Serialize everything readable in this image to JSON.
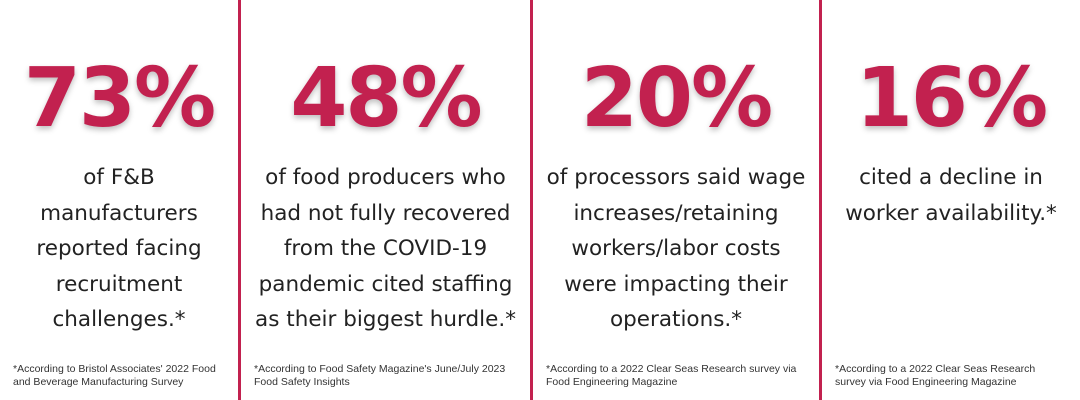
{
  "colors": {
    "accent": "#c2214f",
    "text": "#222222",
    "background": "#ffffff"
  },
  "stats": [
    {
      "percent": "73%",
      "desc": [
        "of F&B",
        "manufacturers",
        "reported facing",
        "recruitment",
        "challenges.*"
      ],
      "source": [
        "*According to Bristol Associates' 2022 Food",
        "and Beverage Manufacturing Survey"
      ]
    },
    {
      "percent": "48%",
      "desc": [
        "of food producers who",
        "had not fully recovered",
        "from the COVID-19",
        "pandemic cited staffing",
        "as their biggest hurdle.*"
      ],
      "source": [
        "*According to Food Safety Magazine's June/July 2023",
        "Food Safety Insights"
      ]
    },
    {
      "percent": "20%",
      "desc": [
        "of processors said wage",
        "increases/retaining",
        "workers/labor costs",
        "were impacting their",
        "operations.*"
      ],
      "source": [
        "*According to a 2022 Clear Seas Research survey via",
        "Food Engineering Magazine"
      ]
    },
    {
      "percent": "16%",
      "desc": [
        "cited a decline in",
        "worker availability.*"
      ],
      "source": [
        "*According to a 2022 Clear Seas Research",
        "survey via Food Engineering Magazine"
      ]
    }
  ]
}
